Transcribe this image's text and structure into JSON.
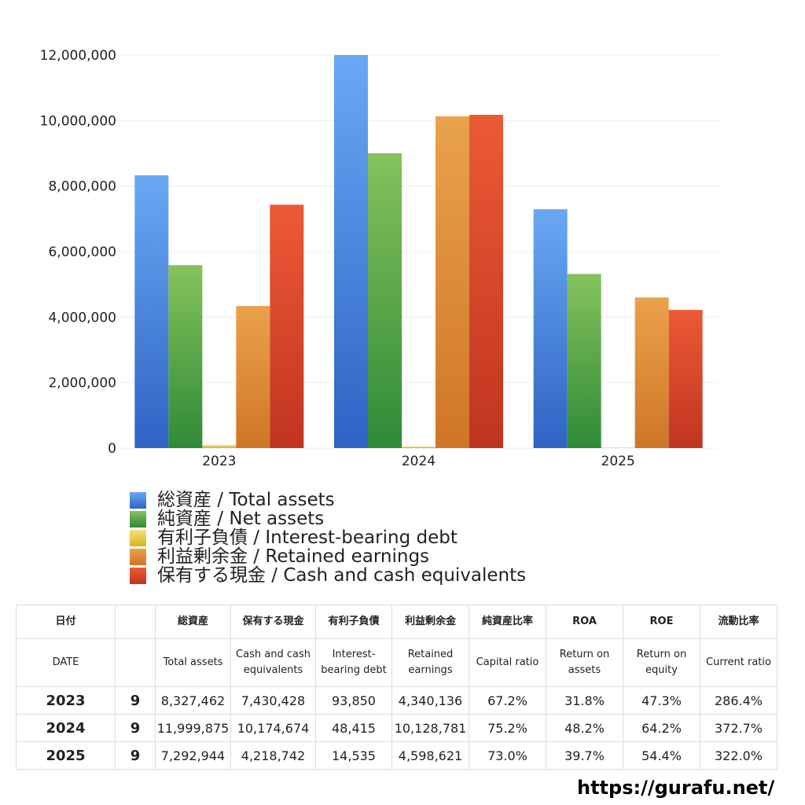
{
  "chart_data": {
    "type": "bar",
    "categories": [
      "2023",
      "2024",
      "2025"
    ],
    "ylim": [
      0,
      12000000
    ],
    "yticks": [
      0,
      2000000,
      4000000,
      6000000,
      8000000,
      10000000,
      12000000
    ],
    "ytick_labels": [
      "0",
      "2,000,000",
      "4,000,000",
      "6,000,000",
      "8,000,000",
      "10,000,000",
      "12,000,000"
    ],
    "grid": true,
    "legend_position": "bottom",
    "series": [
      {
        "name": "総資産 / Total assets",
        "color_top": "#6aa8f4",
        "color_bottom": "#2e63c4",
        "values": [
          8327462,
          11999875,
          7292944
        ]
      },
      {
        "name": "純資産 / Net assets",
        "color_top": "#85c25c",
        "color_bottom": "#2f8a37",
        "values": [
          5587000,
          9000000,
          5316000
        ]
      },
      {
        "name": "有利子負債 / Interest-bearing debt",
        "color_top": "#f6e07a",
        "color_bottom": "#d9b520",
        "values": [
          93850,
          48415,
          14535
        ]
      },
      {
        "name": "利益剰余金 / Retained earnings",
        "color_top": "#e9a24a",
        "color_bottom": "#d07528",
        "values": [
          4340136,
          10128781,
          4598621
        ]
      },
      {
        "name": "保有する現金 /  Cash and cash equivalents",
        "color_top": "#ec5a35",
        "color_bottom": "#c03420",
        "values": [
          7430428,
          10174674,
          4218742
        ]
      }
    ]
  },
  "table": {
    "header_jp": [
      "日付",
      "",
      "総資産",
      "保有する現金",
      "有利子負債",
      "利益剰余金",
      "純資産比率",
      "ROA",
      "ROE",
      "流動比率"
    ],
    "header_en": [
      "DATE",
      "",
      "Total assets",
      "Cash and cash equivalents",
      "Interest-bearing debt",
      "Retained earnings",
      "Capital ratio",
      "Return on assets",
      "Return on equity",
      "Current ratio"
    ],
    "rows": [
      [
        "2023",
        "9",
        "8,327,462",
        "7,430,428",
        "93,850",
        "4,340,136",
        "67.2%",
        "31.8%",
        "47.3%",
        "286.4%"
      ],
      [
        "2024",
        "9",
        "11,999,875",
        "10,174,674",
        "48,415",
        "10,128,781",
        "75.2%",
        "48.2%",
        "64.2%",
        "372.7%"
      ],
      [
        "2025",
        "9",
        "7,292,944",
        "4,218,742",
        "14,535",
        "4,598,621",
        "73.0%",
        "39.7%",
        "54.4%",
        "322.0%"
      ]
    ]
  },
  "footer": {
    "url": "https://gurafu.net/"
  }
}
